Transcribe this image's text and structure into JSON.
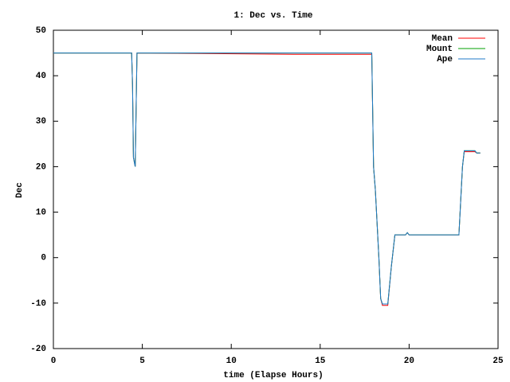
{
  "chart_data": {
    "type": "line",
    "title": "1: Dec vs. Time",
    "x_label": "time (Elapse Hours)",
    "y_label": "Dec",
    "x": [
      0,
      4.4,
      4.45,
      4.5,
      4.6,
      4.7,
      13.5,
      17.9,
      18.0,
      18.1,
      18.3,
      18.4,
      18.5,
      18.8,
      19.0,
      19.2,
      19.8,
      19.9,
      20.0,
      22.8,
      23.0,
      23.1,
      23.7,
      23.8,
      24
    ],
    "series": [
      {
        "name": "Mean",
        "color": "#ff0000",
        "values": [
          45,
          45,
          38,
          22,
          20,
          45,
          44.7,
          44.7,
          20,
          15,
          0,
          -9,
          -10.5,
          -10.5,
          -2,
          5,
          5,
          5.5,
          5,
          5,
          20,
          23.3,
          23.3,
          23,
          23
        ]
      },
      {
        "name": "Mount",
        "color": "#00a000",
        "values": [
          45,
          45,
          38,
          22,
          20,
          45,
          45,
          45,
          20,
          15,
          0,
          -9,
          -10.2,
          -10.2,
          -2,
          5,
          5,
          5.5,
          5,
          5,
          20,
          23.5,
          23.5,
          23,
          23
        ]
      },
      {
        "name": "Ape",
        "color": "#1f78c8",
        "values": [
          45,
          45,
          38,
          22,
          20,
          45,
          45,
          45,
          20,
          15,
          0,
          -9,
          -10.2,
          -10.2,
          -2,
          5,
          5,
          5.5,
          5,
          5,
          20,
          23.5,
          23.5,
          23,
          23
        ]
      }
    ],
    "xlim": [
      0,
      25
    ],
    "xticks": [
      0,
      5,
      10,
      15,
      20,
      25
    ],
    "ylim": [
      -20,
      50
    ],
    "yticks": [
      -20,
      -10,
      0,
      10,
      20,
      30,
      40,
      50
    ],
    "legend": "top-right",
    "grid": false
  }
}
